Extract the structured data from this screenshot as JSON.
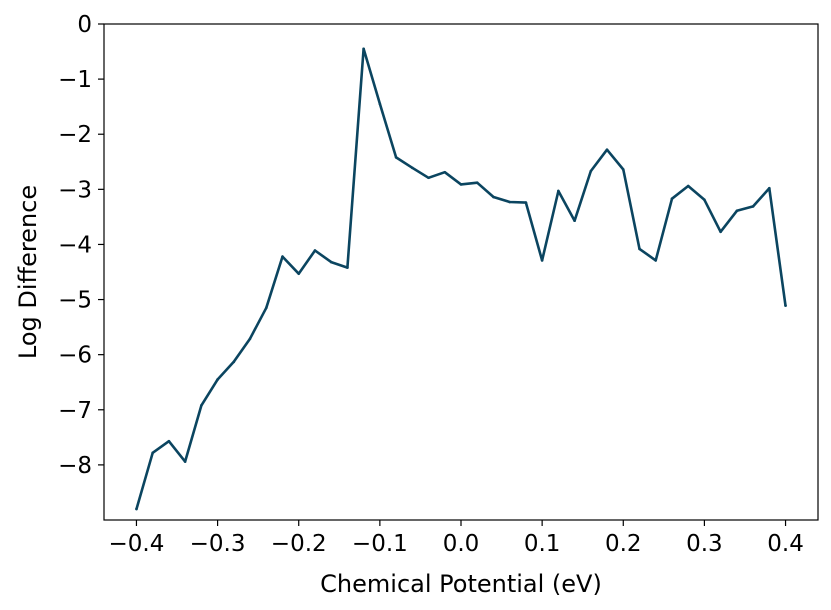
{
  "chart_data": {
    "type": "line",
    "title": "",
    "xlabel": "Chemical Potential (eV)",
    "ylabel": "Log Difference",
    "xlim": [
      -0.44,
      0.44
    ],
    "ylim": [
      -9.0,
      0
    ],
    "x_ticks": [
      -0.4,
      -0.3,
      -0.2,
      -0.1,
      0.0,
      0.1,
      0.2,
      0.3,
      0.4
    ],
    "x_tick_labels": [
      "−0.4",
      "−0.3",
      "−0.2",
      "−0.1",
      "0.0",
      "0.1",
      "0.2",
      "0.3",
      "0.4"
    ],
    "y_ticks": [
      0,
      -1,
      -2,
      -3,
      -4,
      -5,
      -6,
      -7,
      -8
    ],
    "y_tick_labels": [
      "0",
      "−1",
      "−2",
      "−3",
      "−4",
      "−5",
      "−6",
      "−7",
      "−8"
    ],
    "grid": false,
    "line_color": "#0b4560",
    "series": [
      {
        "x": [
          -0.4,
          -0.38,
          -0.36,
          -0.34,
          -0.32,
          -0.3,
          -0.28,
          -0.26,
          -0.24,
          -0.22,
          -0.2,
          -0.18,
          -0.16,
          -0.14,
          -0.12,
          -0.1,
          -0.08,
          -0.06,
          -0.04,
          -0.02,
          0.0,
          0.02,
          0.04,
          0.06,
          0.08,
          0.1,
          0.12,
          0.14,
          0.16,
          0.18,
          0.2,
          0.22,
          0.24,
          0.26,
          0.28,
          0.3,
          0.32,
          0.34,
          0.36,
          0.38,
          0.4
        ],
        "values": [
          -8.8,
          -7.78,
          -7.57,
          -7.94,
          -6.92,
          -6.45,
          -6.13,
          -5.71,
          -5.15,
          -4.22,
          -4.53,
          -4.11,
          -4.32,
          -4.42,
          -0.45,
          -1.45,
          -2.42,
          -2.61,
          -2.79,
          -2.69,
          -2.91,
          -2.88,
          -3.14,
          -3.23,
          -3.24,
          -4.29,
          -3.03,
          -3.57,
          -2.67,
          -2.28,
          -2.64,
          -4.08,
          -4.29,
          -3.17,
          -2.94,
          -3.19,
          -3.77,
          -3.39,
          -3.31,
          -2.98,
          -5.11
        ]
      }
    ]
  }
}
